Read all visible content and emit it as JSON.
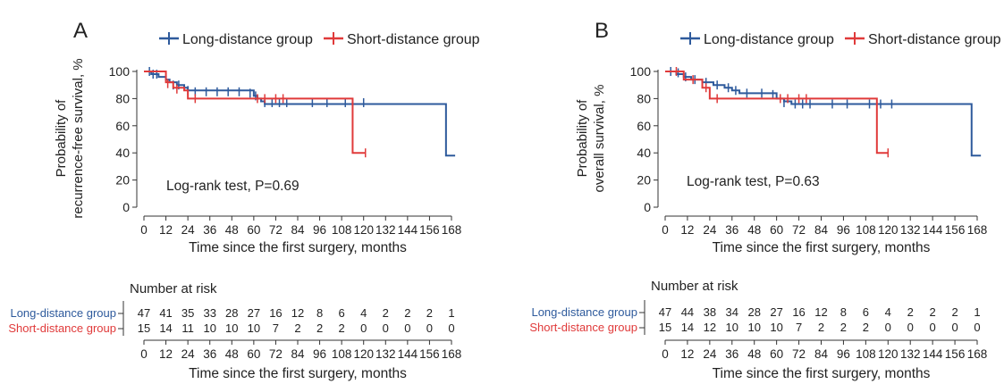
{
  "chart_data": [
    {
      "panel_label": "A",
      "type": "line",
      "step": true,
      "ylabel_lines": [
        "Probability of",
        "recurrence-free survival, %"
      ],
      "xlabel": "Time since the first surgery, months",
      "xlim": [
        0,
        168
      ],
      "ylim": [
        0,
        100
      ],
      "x_ticks": [
        0,
        12,
        24,
        36,
        48,
        60,
        72,
        84,
        96,
        108,
        120,
        132,
        144,
        156,
        168
      ],
      "y_ticks": [
        0,
        20,
        40,
        60,
        80,
        100
      ],
      "legend_position": "top",
      "annotation": "Log-rank test, P=0.69",
      "series": [
        {
          "name": "Long-distance group",
          "color": "#2e5a9c",
          "steps": [
            [
              0,
              100
            ],
            [
              4,
              98
            ],
            [
              8,
              96
            ],
            [
              12,
              94
            ],
            [
              14,
              92
            ],
            [
              18,
              90
            ],
            [
              22,
              88
            ],
            [
              24,
              86
            ],
            [
              58,
              86
            ],
            [
              60,
              82
            ],
            [
              62,
              80
            ],
            [
              64,
              78
            ],
            [
              66,
              76
            ],
            [
              165,
              76
            ],
            [
              165,
              38
            ],
            [
              170,
              38
            ]
          ],
          "censors": [
            [
              3,
              100
            ],
            [
              5,
              98
            ],
            [
              7,
              98
            ],
            [
              16,
              90
            ],
            [
              19,
              90
            ],
            [
              24,
              86
            ],
            [
              28,
              85
            ],
            [
              34,
              85
            ],
            [
              40,
              85
            ],
            [
              46,
              85
            ],
            [
              52,
              85
            ],
            [
              58,
              84
            ],
            [
              61,
              82
            ],
            [
              66,
              77
            ],
            [
              70,
              77
            ],
            [
              74,
              77
            ],
            [
              78,
              77
            ],
            [
              92,
              77
            ],
            [
              100,
              77
            ],
            [
              110,
              77
            ],
            [
              114,
              77
            ],
            [
              120,
              77
            ]
          ]
        },
        {
          "name": "Short-distance group",
          "color": "#e03a3a",
          "steps": [
            [
              0,
              100
            ],
            [
              10,
              100
            ],
            [
              12,
              92
            ],
            [
              16,
              88
            ],
            [
              22,
              86
            ],
            [
              24,
              80
            ],
            [
              114,
              80
            ],
            [
              114,
              40
            ],
            [
              121,
              40
            ]
          ],
          "censors": [
            [
              13,
              91
            ],
            [
              18,
              87
            ],
            [
              28,
              80
            ],
            [
              62,
              80
            ],
            [
              66,
              80
            ],
            [
              72,
              80
            ],
            [
              76,
              80
            ],
            [
              121,
              40
            ]
          ]
        }
      ],
      "risk_table": {
        "title": "Number at risk",
        "xlabel": "Time since the first surgery, months",
        "rows": [
          {
            "label": "Long-distance group",
            "color": "#2e5a9c",
            "values": [
              "47",
              "41",
              "35",
              "33",
              "28",
              "27",
              "16",
              "12",
              "8",
              "6",
              "4",
              "2",
              "2",
              "2",
              "1"
            ]
          },
          {
            "label": "Short-distance group",
            "color": "#e03a3a",
            "values": [
              "15",
              "14",
              "11",
              "10",
              "10",
              "10",
              "7",
              "2",
              "2",
              "2",
              "0",
              "0",
              "0",
              "0",
              "0"
            ]
          }
        ]
      }
    },
    {
      "panel_label": "B",
      "type": "line",
      "step": true,
      "ylabel_lines": [
        "Probability of",
        "overall survival, %"
      ],
      "xlabel": "Time since the first surgery, months",
      "xlim": [
        0,
        168
      ],
      "ylim": [
        0,
        100
      ],
      "x_ticks": [
        0,
        12,
        24,
        36,
        48,
        60,
        72,
        84,
        96,
        108,
        120,
        132,
        144,
        156,
        168
      ],
      "y_ticks": [
        0,
        20,
        40,
        60,
        80,
        100
      ],
      "legend_position": "top",
      "annotation": "Log-rank test, P=0.63",
      "series": [
        {
          "name": "Long-distance group",
          "color": "#2e5a9c",
          "steps": [
            [
              0,
              100
            ],
            [
              6,
              98
            ],
            [
              10,
              96
            ],
            [
              14,
              94
            ],
            [
              20,
              92
            ],
            [
              26,
              90
            ],
            [
              32,
              88
            ],
            [
              36,
              86
            ],
            [
              40,
              84
            ],
            [
              58,
              84
            ],
            [
              60,
              80
            ],
            [
              64,
              78
            ],
            [
              68,
              76
            ],
            [
              165,
              76
            ],
            [
              165,
              38
            ],
            [
              170,
              38
            ]
          ],
          "censors": [
            [
              3,
              100
            ],
            [
              7,
              99
            ],
            [
              11,
              96
            ],
            [
              16,
              94
            ],
            [
              22,
              92
            ],
            [
              28,
              90
            ],
            [
              34,
              88
            ],
            [
              38,
              86
            ],
            [
              44,
              84
            ],
            [
              52,
              84
            ],
            [
              58,
              83
            ],
            [
              64,
              77
            ],
            [
              70,
              76
            ],
            [
              74,
              76
            ],
            [
              78,
              76
            ],
            [
              90,
              76
            ],
            [
              98,
              76
            ],
            [
              110,
              76
            ],
            [
              116,
              76
            ],
            [
              122,
              76
            ]
          ]
        },
        {
          "name": "Short-distance group",
          "color": "#e03a3a",
          "steps": [
            [
              0,
              100
            ],
            [
              8,
              100
            ],
            [
              10,
              94
            ],
            [
              20,
              88
            ],
            [
              24,
              80
            ],
            [
              114,
              80
            ],
            [
              114,
              40
            ],
            [
              120,
              40
            ]
          ],
          "censors": [
            [
              6,
              100
            ],
            [
              15,
              94
            ],
            [
              22,
              88
            ],
            [
              28,
              80
            ],
            [
              62,
              80
            ],
            [
              66,
              80
            ],
            [
              72,
              80
            ],
            [
              76,
              80
            ],
            [
              120,
              40
            ]
          ]
        }
      ],
      "risk_table": {
        "title": "Number at risk",
        "xlabel": "Time since the first surgery, months",
        "rows": [
          {
            "label": "Long-distance group",
            "color": "#2e5a9c",
            "values": [
              "47",
              "44",
              "38",
              "34",
              "28",
              "27",
              "16",
              "12",
              "8",
              "6",
              "4",
              "2",
              "2",
              "2",
              "1"
            ]
          },
          {
            "label": "Short-distance group",
            "color": "#e03a3a",
            "values": [
              "15",
              "14",
              "12",
              "10",
              "10",
              "10",
              "7",
              "2",
              "2",
              "2",
              "0",
              "0",
              "0",
              "0",
              "0"
            ]
          }
        ]
      }
    }
  ]
}
